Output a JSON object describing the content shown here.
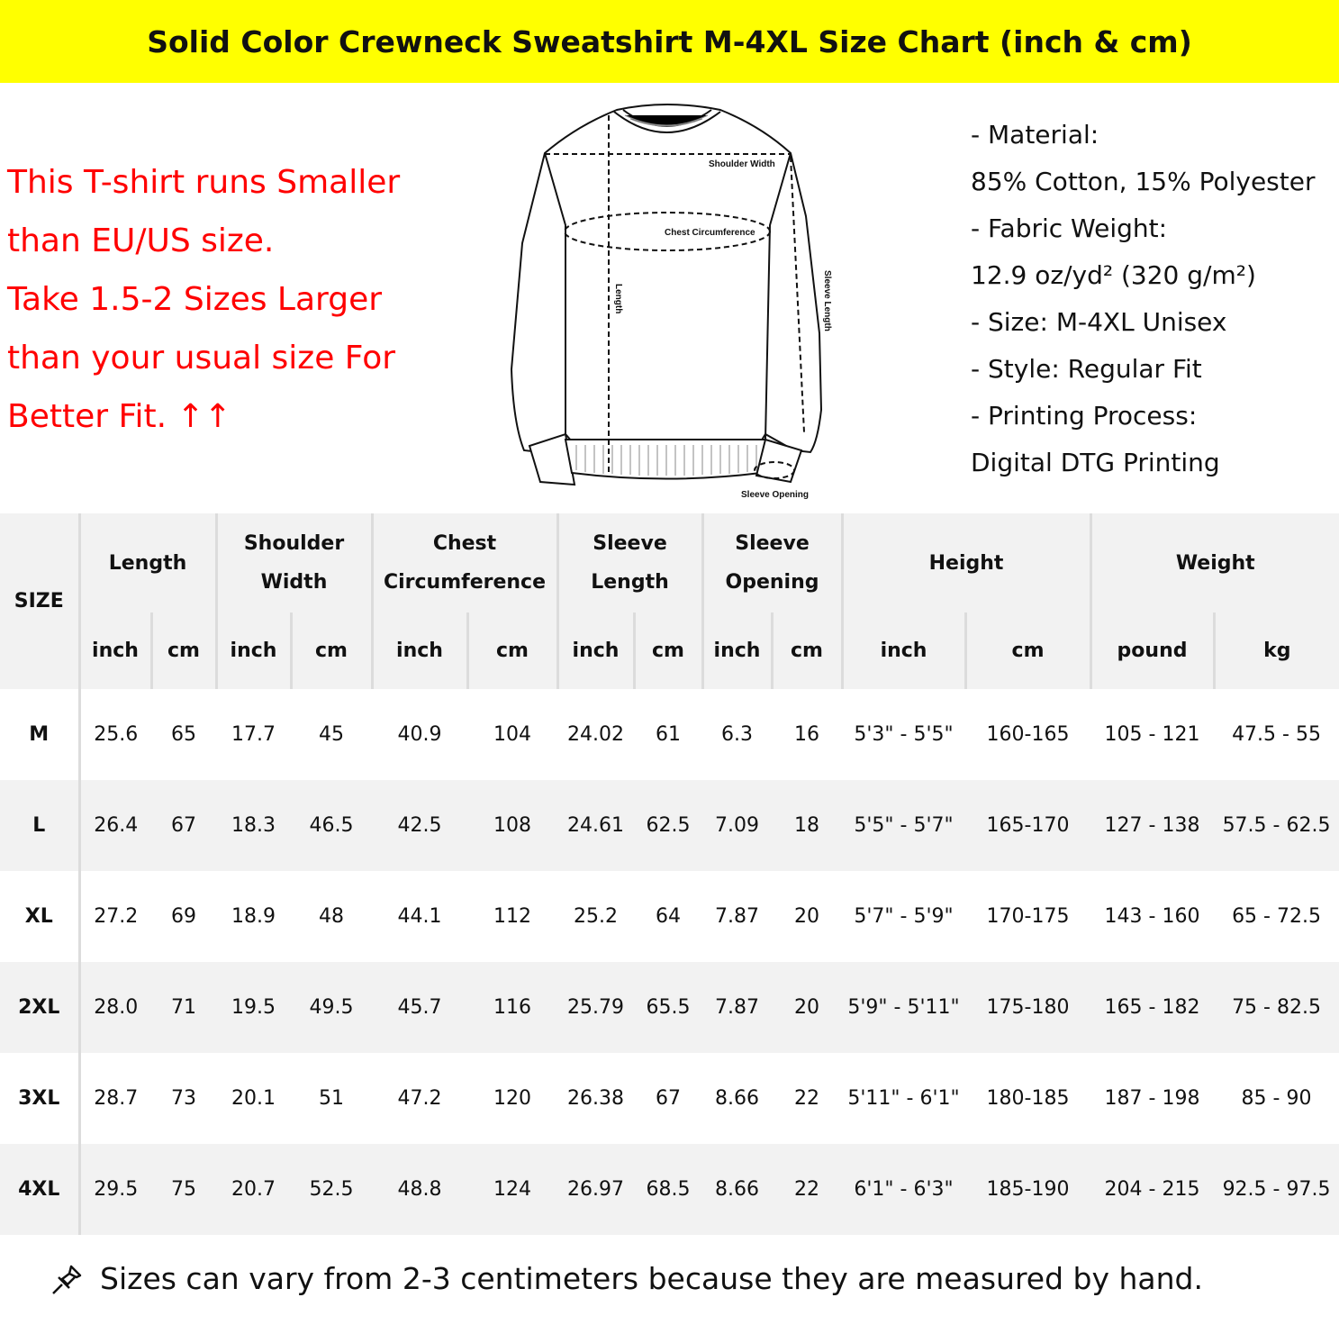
{
  "title": "Solid Color Crewneck Sweatshirt M-4XL Size Chart (inch & cm)",
  "note_lines": [
    "This T-shirt runs Smaller",
    "than EU/US size.",
    "Take 1.5-2 Sizes Larger",
    "than your usual size For",
    "Better Fit. ↑↑"
  ],
  "diagram": {
    "shoulder": "Shoulder Width",
    "chest": "Chest Circumference",
    "length": "Length",
    "sleeve_length": "Sleeve Length",
    "sleeve_opening": "Sleeve Opening"
  },
  "specs": [
    "- Material:",
    "85% Cotton, 15% Polyester",
    "- Fabric Weight:",
    "12.9 oz/yd² (320 g/m²)",
    "- Size: M-4XL Unisex",
    "- Style: Regular Fit",
    "- Printing Process:",
    "Digital DTG Printing"
  ],
  "table": {
    "size_header": "SIZE",
    "groups": [
      "Length",
      "Shoulder Width",
      "Chest Circumference",
      "Sleeve Length",
      "Sleeve Opening",
      "Height",
      "Weight"
    ],
    "units": [
      "inch",
      "cm",
      "inch",
      "cm",
      "inch",
      "cm",
      "inch",
      "cm",
      "inch",
      "cm",
      "inch",
      "cm",
      "pound",
      "kg"
    ],
    "rows": [
      [
        "M",
        "25.6",
        "65",
        "17.7",
        "45",
        "40.9",
        "104",
        "24.02",
        "61",
        "6.3",
        "16",
        "5'3\" - 5'5\"",
        "160-165",
        "105 - 121",
        "47.5 - 55"
      ],
      [
        "L",
        "26.4",
        "67",
        "18.3",
        "46.5",
        "42.5",
        "108",
        "24.61",
        "62.5",
        "7.09",
        "18",
        "5'5\" - 5'7\"",
        "165-170",
        "127 - 138",
        "57.5 - 62.5"
      ],
      [
        "XL",
        "27.2",
        "69",
        "18.9",
        "48",
        "44.1",
        "112",
        "25.2",
        "64",
        "7.87",
        "20",
        "5'7\" - 5'9\"",
        "170-175",
        "143 - 160",
        "65 - 72.5"
      ],
      [
        "2XL",
        "28.0",
        "71",
        "19.5",
        "49.5",
        "45.7",
        "116",
        "25.79",
        "65.5",
        "7.87",
        "20",
        "5'9\" - 5'11\"",
        "175-180",
        "165 - 182",
        "75 - 82.5"
      ],
      [
        "3XL",
        "28.7",
        "73",
        "20.1",
        "51",
        "47.2",
        "120",
        "26.38",
        "67",
        "8.66",
        "22",
        "5'11\" - 6'1\"",
        "180-185",
        "187 - 198",
        "85 - 90"
      ],
      [
        "4XL",
        "29.5",
        "75",
        "20.7",
        "52.5",
        "48.8",
        "124",
        "26.97",
        "68.5",
        "8.66",
        "22",
        "6'1\" - 6'3\"",
        "185-190",
        "204 - 215",
        "92.5 - 97.5"
      ]
    ]
  },
  "footer": {
    "icon": "pushpin-icon",
    "text": "Sizes can vary from 2-3 centimeters because they are measured by hand."
  }
}
